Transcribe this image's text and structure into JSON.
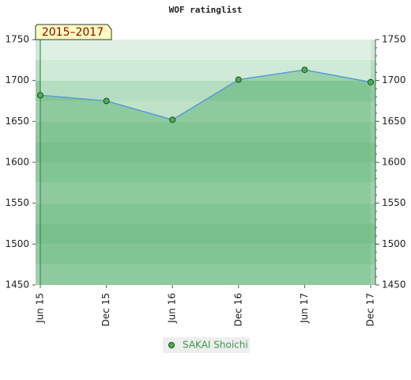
{
  "chart_data": {
    "type": "area",
    "title": "WOF ratinglist",
    "period_label": "2015–2017",
    "categories": [
      "Jun 15",
      "Dec 15",
      "Jun 16",
      "Dec 16",
      "Jun 17",
      "Dec 17"
    ],
    "series": [
      {
        "name": "SAKAI Shoichi",
        "color": "#5b9bd5",
        "values": [
          1682,
          1675,
          1652,
          1701,
          1713,
          1698
        ]
      }
    ],
    "ylim": [
      1450,
      1750
    ],
    "yticks": [
      1450,
      1500,
      1550,
      1600,
      1650,
      1700,
      1750
    ],
    "y2lim": [
      1450,
      1750
    ],
    "y2ticks": [
      1450,
      1500,
      1550,
      1600,
      1650,
      1700,
      1750
    ],
    "legend": "bottom"
  }
}
